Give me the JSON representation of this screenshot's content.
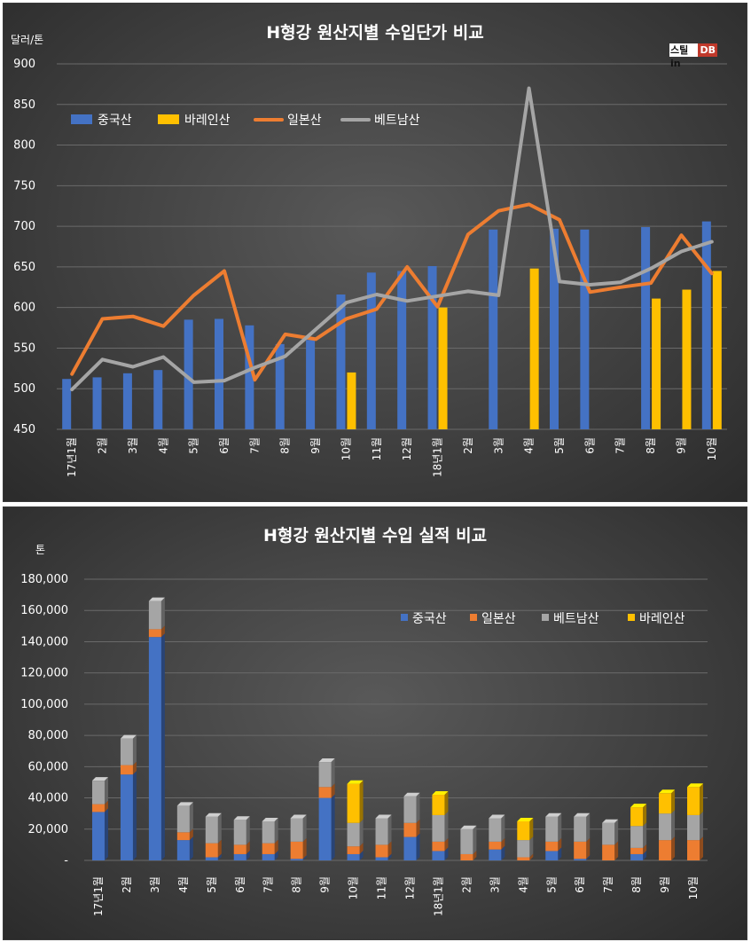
{
  "chart_data": [
    {
      "type": "bar+line",
      "title": "H형강 원산지별 수입단가 비교",
      "ylabel": "달러/톤",
      "ylim": [
        450,
        900
      ],
      "yticks": [
        450,
        500,
        550,
        600,
        650,
        700,
        750,
        800,
        850,
        900
      ],
      "grid": true,
      "legend": "top-left",
      "categories": [
        "17년1월",
        "2월",
        "3월",
        "4월",
        "5월",
        "6월",
        "7월",
        "8월",
        "9월",
        "10월",
        "11월",
        "12월",
        "18년1월",
        "2월",
        "3월",
        "4월",
        "5월",
        "6월",
        "7월",
        "8월",
        "9월",
        "10월"
      ],
      "bar_series": [
        {
          "name": "중국산",
          "color": "#4472c4",
          "values": [
            512,
            514,
            519,
            523,
            585,
            586,
            578,
            555,
            560,
            616,
            643,
            645,
            651,
            null,
            696,
            null,
            697,
            696,
            null,
            699,
            null,
            706
          ]
        },
        {
          "name": "바레인산",
          "color": "#ffc000",
          "values": [
            null,
            null,
            null,
            null,
            null,
            null,
            null,
            null,
            null,
            520,
            null,
            null,
            600,
            null,
            null,
            648,
            null,
            null,
            null,
            611,
            622,
            645
          ]
        }
      ],
      "line_series": [
        {
          "name": "일본산",
          "color": "#ed7d31",
          "values": [
            518,
            586,
            589,
            577,
            615,
            645,
            511,
            567,
            561,
            586,
            598,
            650,
            601,
            690,
            719,
            727,
            708,
            619,
            625,
            630,
            689,
            642
          ]
        },
        {
          "name": "베트남산",
          "color": "#a5a5a5",
          "values": [
            499,
            536,
            527,
            539,
            508,
            510,
            526,
            540,
            573,
            606,
            616,
            608,
            614,
            620,
            615,
            870,
            632,
            628,
            631,
            648,
            669,
            681
          ]
        }
      ],
      "legend_order": [
        "중국산",
        "바레인산",
        "일본산",
        "베트남산"
      ]
    },
    {
      "type": "stacked-bar",
      "title": "H형강 원산지별 수입 실적 비교",
      "ylabel": "톤",
      "ylim": [
        0,
        180000
      ],
      "ytick_labels": [
        "-",
        "20,000",
        "40,000",
        "60,000",
        "80,000",
        "100,000",
        "120,000",
        "140,000",
        "160,000",
        "180,000"
      ],
      "grid": true,
      "legend": "top-right",
      "categories": [
        "17년1월",
        "2월",
        "3월",
        "4월",
        "5월",
        "6월",
        "7월",
        "8월",
        "9월",
        "10월",
        "11월",
        "12월",
        "18년1월",
        "2월",
        "3월",
        "4월",
        "5월",
        "6월",
        "7월",
        "8월",
        "9월",
        "10월"
      ],
      "series": [
        {
          "name": "중국산",
          "color": "#4472c4",
          "values": [
            31000,
            55000,
            143000,
            13000,
            2000,
            4000,
            4000,
            1000,
            40000,
            4000,
            2000,
            15000,
            6000,
            0,
            7000,
            0,
            6000,
            1000,
            0,
            4000,
            0,
            0
          ]
        },
        {
          "name": "일본산",
          "color": "#ed7d31",
          "values": [
            5000,
            6000,
            5000,
            5000,
            9000,
            6000,
            7000,
            11000,
            7000,
            5000,
            8000,
            9000,
            6000,
            4000,
            5000,
            2000,
            6000,
            11000,
            10000,
            4000,
            13000,
            13000
          ]
        },
        {
          "name": "베트남산",
          "color": "#a5a5a5",
          "values": [
            15000,
            17000,
            18000,
            17000,
            17000,
            16000,
            14000,
            15000,
            16000,
            15000,
            17000,
            17000,
            17000,
            16000,
            15000,
            11000,
            16000,
            16000,
            14000,
            14000,
            17000,
            16000
          ]
        },
        {
          "name": "바레인산",
          "color": "#ffc000",
          "values": [
            0,
            0,
            0,
            0,
            0,
            0,
            0,
            0,
            0,
            25000,
            0,
            0,
            13000,
            0,
            0,
            12000,
            0,
            0,
            0,
            12000,
            13000,
            18000
          ]
        }
      ],
      "legend_order": [
        "중국산",
        "일본산",
        "베트남산",
        "바레인산"
      ]
    }
  ],
  "logo": {
    "part1": "스틸in",
    "part2": "DB"
  }
}
